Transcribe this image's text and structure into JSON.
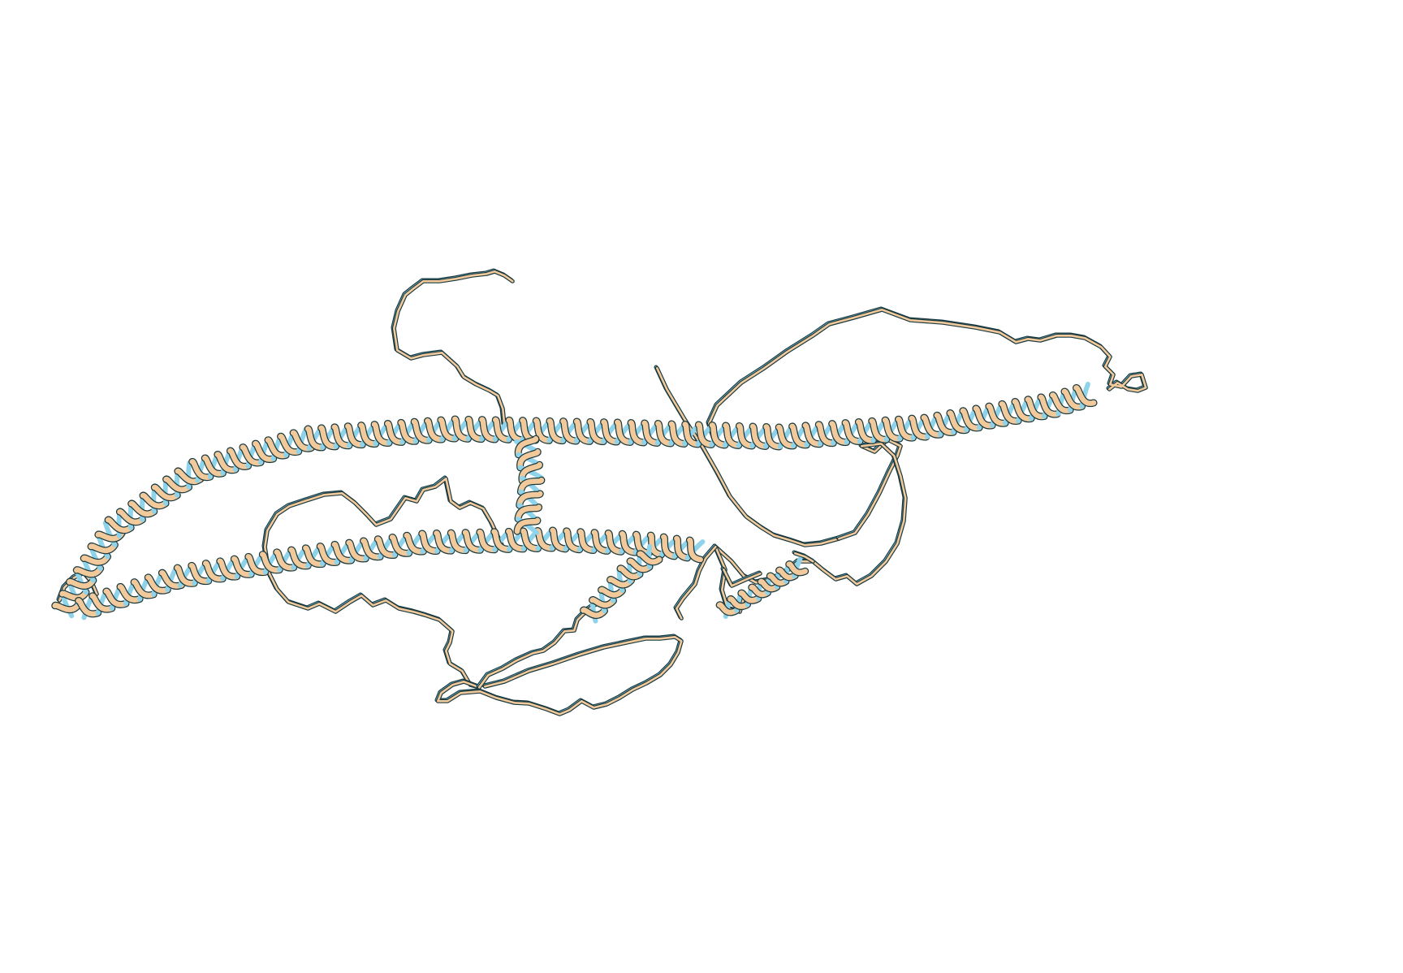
{
  "scene": {
    "kind": "protein-ribbon-render",
    "background_color": "#ffffff",
    "ribbon_colors": {
      "front": "#f2c99a",
      "back": "#8fd3ea",
      "outline": "#1b3a40"
    },
    "style": "cartoon ribbon, two overlaid chains"
  }
}
